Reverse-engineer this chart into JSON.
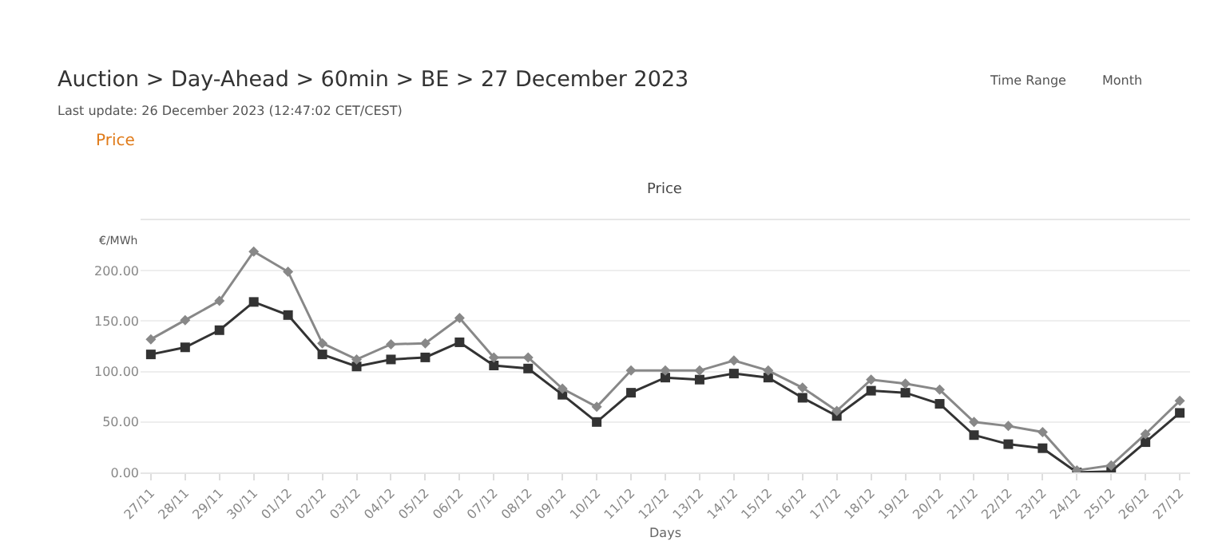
{
  "chart_data": {
    "type": "line",
    "title": "Auction > Day-Ahead > 60min > BE > 27 December 2023",
    "subtitle": "Last update: 26 December 2023 (12:47:02 CET/CEST)",
    "annotations": [
      "Price",
      "Price",
      "Time Range",
      "Month"
    ],
    "xlabel": "Days",
    "ylabel": "€/MWh",
    "categories": [
      "27/11",
      "28/11",
      "29/11",
      "30/11",
      "01/12",
      "02/12",
      "03/12",
      "04/12",
      "05/12",
      "06/12",
      "07/12",
      "08/12",
      "09/12",
      "10/12",
      "11/12",
      "12/12",
      "13/12",
      "14/12",
      "15/12",
      "16/12",
      "17/12",
      "18/12",
      "19/12",
      "20/12",
      "21/12",
      "22/12",
      "23/12",
      "24/12",
      "25/12",
      "26/12",
      "27/12"
    ],
    "series": [
      {
        "color": "#888888",
        "marker": "diamond",
        "values": [
          132,
          151,
          170,
          219,
          199,
          128,
          112,
          127,
          128,
          153,
          114,
          114,
          83,
          65,
          101,
          101,
          101,
          111,
          101,
          84,
          61,
          92,
          88,
          82,
          50,
          46,
          40,
          2,
          7,
          38,
          71
        ]
      },
      {
        "color": "#333333",
        "marker": "square",
        "values": [
          117,
          124,
          141,
          169,
          156,
          117,
          105,
          112,
          114,
          129,
          106,
          103,
          77,
          50,
          79,
          94,
          92,
          98,
          94,
          74,
          56,
          81,
          79,
          68,
          37,
          28,
          24,
          0,
          1,
          30,
          59
        ]
      }
    ],
    "ylim": [
      0,
      250
    ],
    "yticks": [
      {
        "value": 0,
        "label": "0.00"
      },
      {
        "value": 50,
        "label": "50.00"
      },
      {
        "value": 100,
        "label": "100.00"
      },
      {
        "value": 150,
        "label": "150.00"
      },
      {
        "value": 200,
        "label": "200.00"
      },
      {
        "value": 250,
        "label": null
      }
    ],
    "grid": "y",
    "line_style": "solid"
  }
}
